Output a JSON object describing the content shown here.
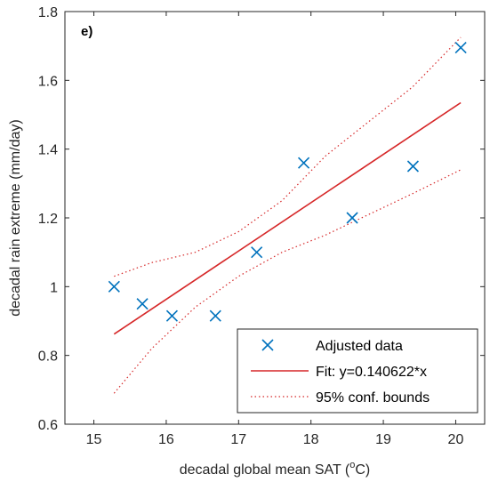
{
  "chart_data": {
    "type": "scatter",
    "panel_label": "e)",
    "xlabel": "decadal global mean SAT (",
    "xlabel_sup": "o",
    "xlabel_end": "C)",
    "ylabel": "decadal rain extreme (mm/day)",
    "xlim": [
      14.6,
      20.4
    ],
    "ylim": [
      0.6,
      1.8
    ],
    "xticks": [
      15,
      16,
      17,
      18,
      19,
      20
    ],
    "xtick_labels": [
      "15",
      "16",
      "17",
      "18",
      "19",
      "20"
    ],
    "yticks": [
      0.6,
      0.8,
      1.0,
      1.2,
      1.4,
      1.6,
      1.8
    ],
    "ytick_labels": [
      "0.6",
      "0.8",
      "1",
      "1.2",
      "1.4",
      "1.6",
      "1.8"
    ],
    "grid": false,
    "legend_position": "bottom-right",
    "series": [
      {
        "name": "Adjusted data",
        "kind": "scatter",
        "marker": "x",
        "color": "#0072BD",
        "x": [
          15.28,
          15.67,
          16.08,
          16.68,
          17.25,
          17.9,
          18.57,
          19.41,
          20.07
        ],
        "y": [
          1.0,
          0.95,
          0.915,
          0.915,
          1.1,
          1.36,
          1.2,
          1.35,
          1.695
        ]
      },
      {
        "name": "Fit: y=0.140622*x",
        "kind": "line",
        "style": "solid",
        "color": "#D62728",
        "x": [
          15.28,
          20.07
        ],
        "y": [
          0.862,
          1.535
        ]
      },
      {
        "name": "95% conf. bounds",
        "kind": "line",
        "style": "dotted",
        "color": "#D62728",
        "x": [
          15.28,
          15.8,
          16.4,
          17.0,
          17.6,
          18.2,
          18.8,
          19.4,
          20.07
        ],
        "y": [
          1.03,
          1.07,
          1.1,
          1.16,
          1.25,
          1.38,
          1.48,
          1.58,
          1.725
        ],
        "x_lower": [
          15.28,
          15.8,
          16.4,
          17.0,
          17.6,
          18.2,
          18.8,
          19.4,
          20.07
        ],
        "y_lower": [
          0.69,
          0.82,
          0.94,
          1.03,
          1.1,
          1.15,
          1.21,
          1.27,
          1.34
        ]
      }
    ]
  }
}
